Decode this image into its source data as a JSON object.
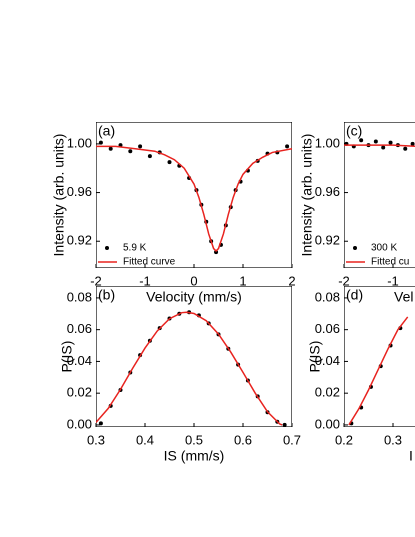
{
  "chart_data": [
    {
      "type": "scatter",
      "label": "(a)",
      "x_label": "Velocity (mm/s)",
      "y_label": "Intensity (arb. units)",
      "xlim": [
        -2,
        2
      ],
      "xticks": [
        -2,
        -1,
        0,
        1,
        2
      ],
      "ylim": [
        0.898,
        1.018
      ],
      "yticks": [
        {
          "value": 1,
          "label": "1.00"
        },
        0.96,
        0.92
      ],
      "series": [
        {
          "name": "5.9 K",
          "color": "#000000",
          "mode": "markers",
          "x": [
            -1.9,
            -1.7,
            -1.5,
            -1.3,
            -1.1,
            -0.9,
            -0.7,
            -0.5,
            -0.3,
            -0.1,
            0.05,
            0.15,
            0.25,
            0.35,
            0.45,
            0.55,
            0.65,
            0.75,
            0.85,
            0.95,
            1.1,
            1.3,
            1.5,
            1.7,
            1.9
          ],
          "y": [
            1.001,
            0.996,
            0.999,
            0.994,
            0.998,
            0.99,
            0.993,
            0.985,
            0.982,
            0.972,
            0.962,
            0.95,
            0.936,
            0.92,
            0.911,
            0.917,
            0.933,
            0.948,
            0.962,
            0.969,
            0.978,
            0.986,
            0.992,
            0.993,
            0.998
          ]
        },
        {
          "name": "Fitted curve",
          "color": "#e8231f",
          "mode": "line",
          "x": [
            -2,
            -1.6,
            -1.2,
            -0.8,
            -0.6,
            -0.4,
            -0.2,
            0,
            0.1,
            0.2,
            0.3,
            0.4,
            0.45,
            0.5,
            0.6,
            0.7,
            0.8,
            0.9,
            1.0,
            1.2,
            1.4,
            1.6,
            2.0
          ],
          "y": [
            0.998,
            0.998,
            0.996,
            0.994,
            0.991,
            0.987,
            0.98,
            0.967,
            0.956,
            0.942,
            0.926,
            0.914,
            0.912,
            0.914,
            0.926,
            0.942,
            0.956,
            0.967,
            0.975,
            0.984,
            0.989,
            0.993,
            0.996
          ]
        }
      ]
    },
    {
      "type": "scatter",
      "label": "(b)",
      "x_label": "IS (mm/s)",
      "y_label": "P(IS)",
      "xlim": [
        0.3,
        0.7
      ],
      "xticks": [
        0.3,
        0.4,
        0.5,
        0.6,
        0.7
      ],
      "ylim": [
        -0.0013,
        0.0875
      ],
      "yticks": [
        0.08,
        0.06,
        0.04,
        0.02,
        {
          "value": 0,
          "label": "0.00"
        }
      ],
      "series": [
        {
          "color": "#000000",
          "mode": "markers",
          "x": [
            0.31,
            0.33,
            0.35,
            0.37,
            0.39,
            0.41,
            0.43,
            0.45,
            0.47,
            0.49,
            0.51,
            0.53,
            0.55,
            0.57,
            0.59,
            0.61,
            0.63,
            0.65,
            0.67,
            0.685
          ],
          "y": [
            0.001,
            0.012,
            0.022,
            0.033,
            0.044,
            0.053,
            0.061,
            0.067,
            0.07,
            0.071,
            0.069,
            0.064,
            0.057,
            0.048,
            0.038,
            0.028,
            0.018,
            0.008,
            0.002,
            0
          ]
        },
        {
          "color": "#e8231f",
          "mode": "line",
          "x": [
            0.3,
            0.325,
            0.35,
            0.375,
            0.4,
            0.425,
            0.45,
            0.475,
            0.485,
            0.5,
            0.525,
            0.55,
            0.575,
            0.6,
            0.625,
            0.65,
            0.675,
            0.68
          ],
          "y": [
            0.0016,
            0.0104,
            0.0224,
            0.0358,
            0.0484,
            0.0592,
            0.0669,
            0.0707,
            0.071,
            0.0702,
            0.0656,
            0.0572,
            0.0459,
            0.0331,
            0.02,
            0.0083,
            0.0006,
            0
          ]
        }
      ]
    },
    {
      "type": "scatter",
      "label": "(c)",
      "x_label": "Vel",
      "y_label": "Intensity (arb. units)",
      "xlim": [
        -2,
        2
      ],
      "xticks": [
        -2,
        -1
      ],
      "ylim": [
        0.898,
        1.018
      ],
      "yticks": [
        {
          "value": 1,
          "label": "1.00"
        },
        0.96,
        0.92
      ],
      "series": [
        {
          "name": "300 K",
          "color": "#000000",
          "mode": "markers",
          "x": [
            -1.95,
            -1.8,
            -1.65,
            -1.5,
            -1.35,
            -1.2,
            -1.05,
            -0.9,
            -0.75,
            -0.6
          ],
          "y": [
            1.0,
            0.998,
            1.003,
            0.999,
            1.002,
            0.997,
            1.001,
            0.999,
            0.996,
            1.0
          ]
        },
        {
          "name": "Fitted cu",
          "color": "#e8231f",
          "mode": "line",
          "x": [
            -2,
            -1,
            -0.5
          ],
          "y": [
            0.999,
            0.999,
            0.998
          ]
        }
      ]
    },
    {
      "type": "scatter",
      "label": "(d)",
      "x_label": "I",
      "y_label": "P(IS)",
      "xlim": [
        0.2,
        0.6
      ],
      "xticks": [
        0.2,
        0.3
      ],
      "ylim": [
        -0.0013,
        0.0875
      ],
      "yticks": [
        0.08,
        0.06,
        0.04,
        0.02,
        {
          "value": 0,
          "label": "0.00"
        }
      ],
      "series": [
        {
          "color": "#000000",
          "mode": "markers",
          "x": [
            0.215,
            0.235,
            0.255,
            0.275,
            0.295,
            0.315
          ],
          "y": [
            0.001,
            0.011,
            0.024,
            0.037,
            0.05,
            0.061
          ]
        },
        {
          "color": "#e8231f",
          "mode": "line",
          "x": [
            0.21,
            0.23,
            0.25,
            0.27,
            0.29,
            0.31,
            0.33
          ],
          "y": [
            0,
            0.01,
            0.022,
            0.035,
            0.048,
            0.06,
            0.068
          ]
        }
      ]
    }
  ]
}
